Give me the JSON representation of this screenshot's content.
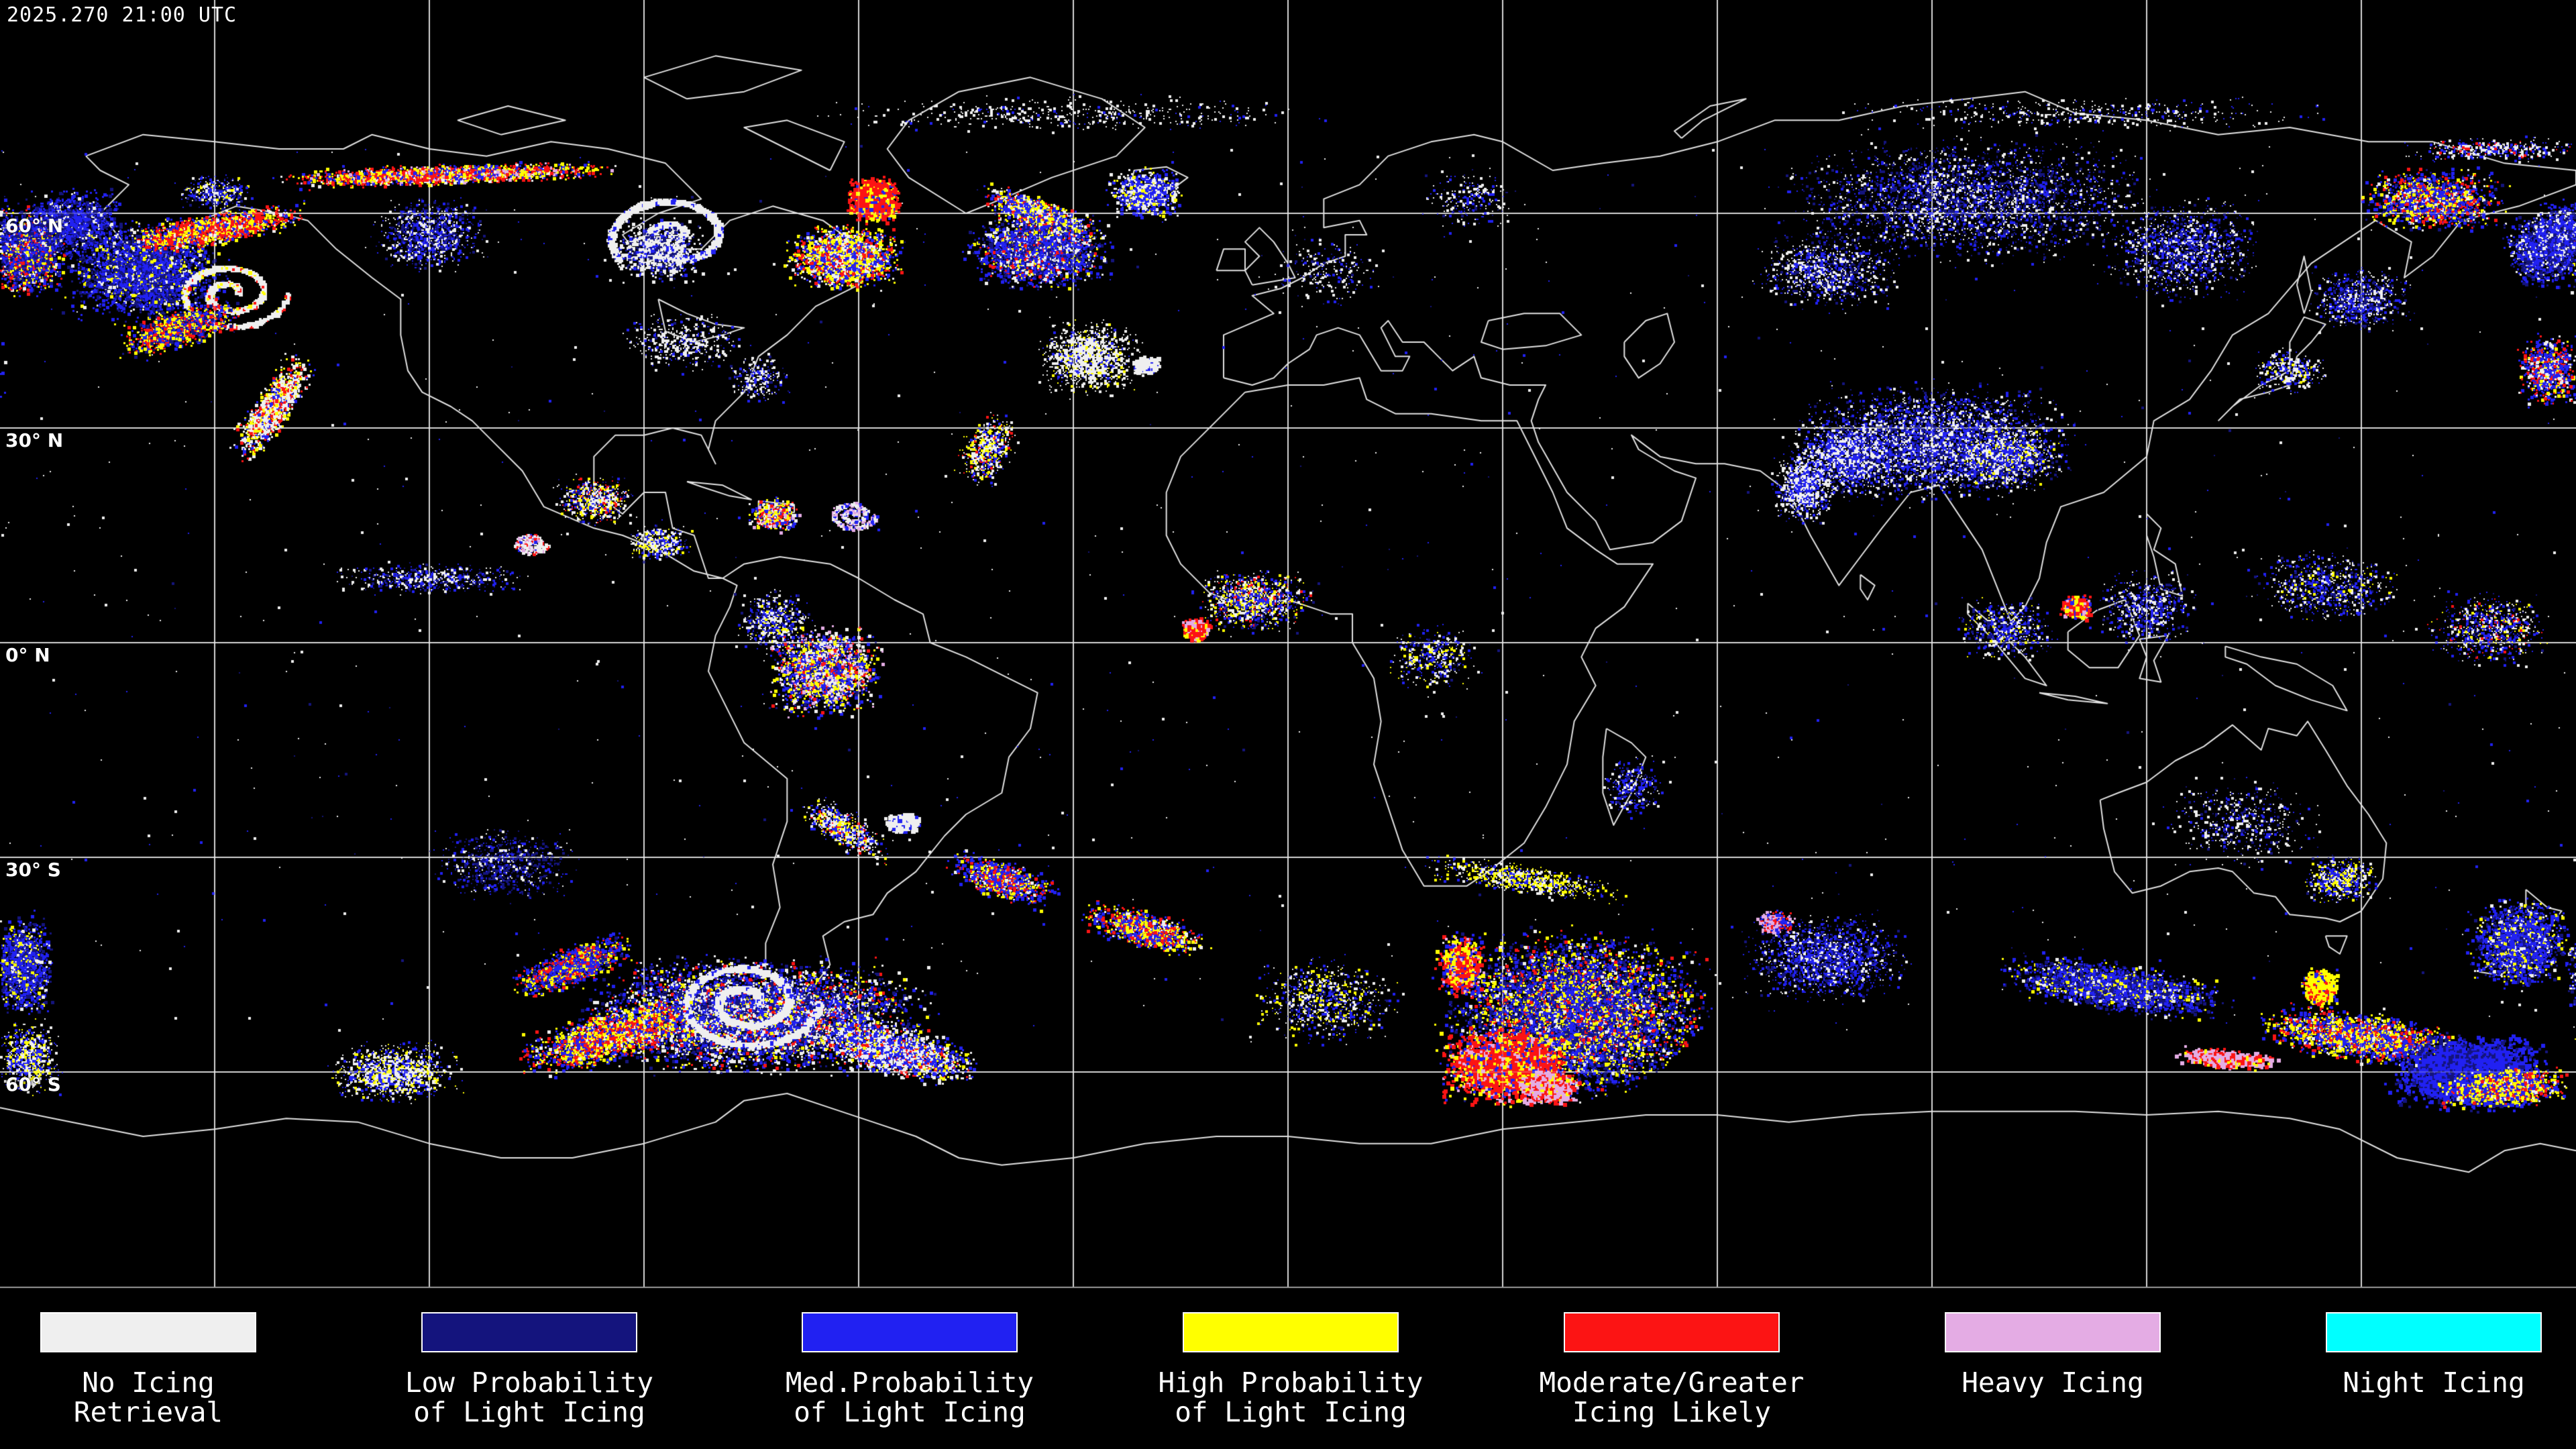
{
  "header": {
    "timestamp": "2025.270 21:00 UTC"
  },
  "map": {
    "background": "#000000",
    "grid_color": "#E8E8E8",
    "coastline_color": "#E2E2E2",
    "bottom_border_color": "#9A9A9A",
    "lat_labels": [
      "60° N",
      "30° N",
      "0° N",
      "30° S",
      "60° S"
    ]
  },
  "palette": {
    "no_icing": "#EFEFEF",
    "low_prob": "#14147D",
    "med_prob": "#2121F2",
    "high_prob": "#FFFF00",
    "moderate": "#FC1414",
    "heavy": "#E4ACE4",
    "night": "#00FFFF"
  },
  "legend": {
    "items": [
      {
        "id": "no-icing-retrieval",
        "color": "no_icing",
        "lines": [
          "No Icing",
          "Retrieval"
        ]
      },
      {
        "id": "low-probability",
        "color": "low_prob",
        "lines": [
          "Low Probability",
          "of Light Icing"
        ]
      },
      {
        "id": "med-probability",
        "color": "med_prob",
        "lines": [
          "Med.Probability",
          "of Light Icing"
        ]
      },
      {
        "id": "high-probability",
        "color": "high_prob",
        "lines": [
          "High Probability",
          "of Light Icing"
        ]
      },
      {
        "id": "moderate-greater",
        "color": "moderate",
        "lines": [
          "Moderate/Greater",
          "Icing Likely"
        ]
      },
      {
        "id": "heavy-icing",
        "color": "heavy",
        "lines": [
          "Heavy Icing"
        ]
      },
      {
        "id": "night-icing",
        "color": "night",
        "lines": [
          "Night Icing"
        ]
      }
    ]
  }
}
